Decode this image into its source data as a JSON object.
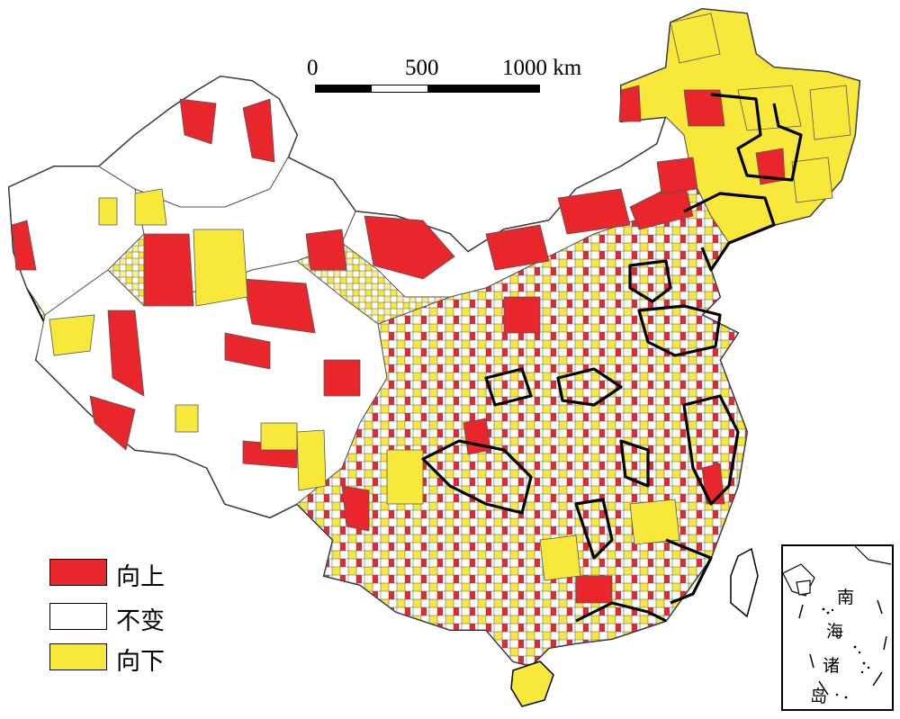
{
  "scale_bar": {
    "labels": [
      "0",
      "500",
      "1000 km"
    ]
  },
  "legend": {
    "items": [
      {
        "label": "向上",
        "color": "#e8262c"
      },
      {
        "label": "不变",
        "color": "#ffffff"
      },
      {
        "label": "向下",
        "color": "#f7e83a"
      }
    ]
  },
  "inset": {
    "title_chars": [
      "南",
      "海",
      "诸",
      "岛"
    ]
  },
  "colors": {
    "up": "#e8262c",
    "unchanged": "#ffffff",
    "down": "#f7e83a",
    "border": "#555555",
    "outline": "#000000"
  }
}
